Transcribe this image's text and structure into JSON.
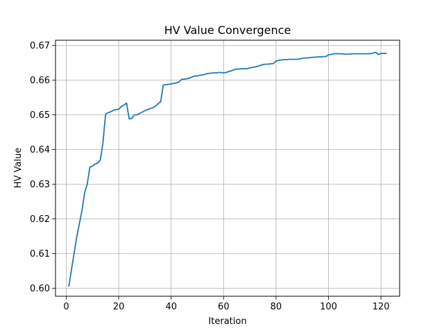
{
  "chart_data": {
    "type": "line",
    "title": "HV Value Convergence",
    "xlabel": "Iteration",
    "ylabel": "HV Value",
    "xlim": [
      -4.1,
      127.1
    ],
    "ylim": [
      0.5977,
      0.6715
    ],
    "xticks": [
      0,
      20,
      40,
      60,
      80,
      100,
      120
    ],
    "xtick_labels": [
      "0",
      "20",
      "40",
      "60",
      "80",
      "100",
      "120"
    ],
    "yticks": [
      0.6,
      0.61,
      0.62,
      0.63,
      0.64,
      0.65,
      0.66,
      0.67
    ],
    "ytick_labels": [
      "0.60",
      "0.61",
      "0.62",
      "0.63",
      "0.64",
      "0.65",
      "0.66",
      "0.67"
    ],
    "grid": true,
    "line_color": "#1f77b4",
    "series": [
      {
        "x": [
          1,
          2,
          3,
          4,
          5,
          6,
          7,
          8,
          9,
          10,
          11,
          12,
          13,
          14,
          15,
          16,
          17,
          18,
          19,
          20,
          21,
          22,
          23,
          24,
          25,
          26,
          27,
          28,
          29,
          30,
          31,
          32,
          33,
          34,
          35,
          36,
          37,
          38,
          39,
          40,
          41,
          42,
          43,
          44,
          45,
          46,
          47,
          48,
          49,
          50,
          51,
          52,
          53,
          54,
          55,
          56,
          57,
          58,
          59,
          60,
          61,
          62,
          63,
          64,
          65,
          66,
          67,
          68,
          69,
          70,
          71,
          72,
          73,
          74,
          75,
          76,
          77,
          78,
          79,
          80,
          81,
          82,
          83,
          84,
          85,
          86,
          87,
          88,
          89,
          90,
          91,
          92,
          93,
          94,
          95,
          96,
          97,
          98,
          99,
          100,
          101,
          102,
          103,
          104,
          105,
          106,
          107,
          108,
          109,
          110,
          111,
          112,
          113,
          114,
          115,
          116,
          117,
          118,
          119,
          120,
          121,
          122
        ],
        "y": [
          0.6006,
          0.6054,
          0.6101,
          0.6148,
          0.6186,
          0.6224,
          0.6275,
          0.63,
          0.6349,
          0.6352,
          0.6358,
          0.6361,
          0.637,
          0.642,
          0.6502,
          0.6506,
          0.6509,
          0.6513,
          0.6515,
          0.6516,
          0.6524,
          0.6528,
          0.6534,
          0.6488,
          0.649,
          0.65,
          0.65,
          0.6504,
          0.6508,
          0.6512,
          0.6515,
          0.6518,
          0.652,
          0.6525,
          0.6532,
          0.6538,
          0.6586,
          0.6587,
          0.6588,
          0.6589,
          0.6591,
          0.6592,
          0.6595,
          0.6602,
          0.6603,
          0.6604,
          0.6606,
          0.6609,
          0.6612,
          0.6612,
          0.6614,
          0.6615,
          0.6617,
          0.6619,
          0.662,
          0.6621,
          0.6621,
          0.6622,
          0.6622,
          0.6621,
          0.6622,
          0.6625,
          0.6627,
          0.663,
          0.6632,
          0.6632,
          0.6633,
          0.6633,
          0.6633,
          0.6635,
          0.6637,
          0.6638,
          0.664,
          0.6642,
          0.6645,
          0.6646,
          0.6646,
          0.6647,
          0.6648,
          0.6655,
          0.6657,
          0.6658,
          0.6659,
          0.6659,
          0.666,
          0.666,
          0.666,
          0.666,
          0.6661,
          0.6663,
          0.6664,
          0.6664,
          0.6665,
          0.6666,
          0.6666,
          0.6667,
          0.6667,
          0.6668,
          0.6668,
          0.6673,
          0.6674,
          0.6676,
          0.6676,
          0.6676,
          0.6676,
          0.6675,
          0.6675,
          0.6675,
          0.6676,
          0.6676,
          0.6676,
          0.6676,
          0.6676,
          0.6676,
          0.6676,
          0.6676,
          0.6678,
          0.668,
          0.6674,
          0.6677,
          0.6677,
          0.6677
        ]
      }
    ]
  }
}
